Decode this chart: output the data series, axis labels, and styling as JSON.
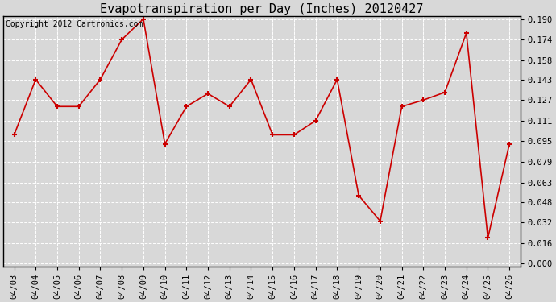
{
  "title": "Evapotranspiration per Day (Inches) 20120427",
  "copyright": "Copyright 2012 Cartronics.com",
  "dates": [
    "04/03",
    "04/04",
    "04/05",
    "04/06",
    "04/07",
    "04/08",
    "04/09",
    "04/10",
    "04/11",
    "04/12",
    "04/13",
    "04/14",
    "04/15",
    "04/16",
    "04/17",
    "04/18",
    "04/19",
    "04/20",
    "04/21",
    "04/22",
    "04/23",
    "04/24",
    "04/25",
    "04/26"
  ],
  "values": [
    0.1,
    0.143,
    0.122,
    0.122,
    0.143,
    0.174,
    0.19,
    0.093,
    0.122,
    0.132,
    0.122,
    0.143,
    0.1,
    0.1,
    0.111,
    0.143,
    0.053,
    0.033,
    0.122,
    0.127,
    0.133,
    0.179,
    0.02,
    0.093
  ],
  "line_color": "#cc0000",
  "marker": "+",
  "marker_size": 5,
  "marker_linewidth": 1.5,
  "background_color": "#d8d8d8",
  "plot_bg_color": "#d8d8d8",
  "grid_color": "#ffffff",
  "ylim_min": 0.0,
  "ylim_max": 0.19,
  "yticks": [
    0.0,
    0.016,
    0.032,
    0.048,
    0.063,
    0.079,
    0.095,
    0.111,
    0.127,
    0.143,
    0.158,
    0.174,
    0.19
  ],
  "title_fontsize": 11,
  "tick_fontsize": 7.5,
  "copyright_fontsize": 7
}
